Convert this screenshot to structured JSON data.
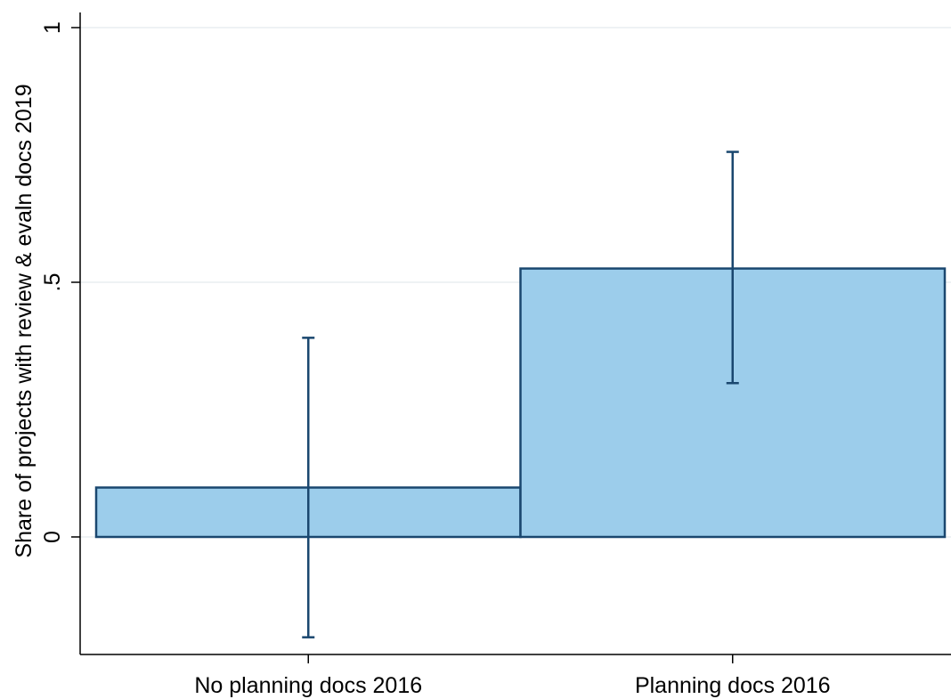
{
  "chart_data": {
    "type": "bar",
    "title": "",
    "xlabel": "",
    "ylabel": "Share of projects with review & evaln docs 2019",
    "categories": [
      "No planning docs 2016",
      "Planning docs 2016"
    ],
    "values": [
      0.097,
      0.527
    ],
    "error_bars": [
      {
        "lower": -0.197,
        "upper": 0.391
      },
      {
        "lower": 0.302,
        "upper": 0.756
      }
    ],
    "ylim": [
      -0.23,
      1.03
    ],
    "yticks": [
      0,
      0.5,
      1
    ],
    "ytick_labels": [
      "0",
      ".5",
      "1"
    ],
    "grid": true,
    "legend": "none",
    "colors": {
      "bar_fill": "#9ccdeb",
      "bar_edge": "#1a476f",
      "error_bar": "#1a476f",
      "grid": "#e8edf0",
      "axis": "#000000"
    }
  }
}
